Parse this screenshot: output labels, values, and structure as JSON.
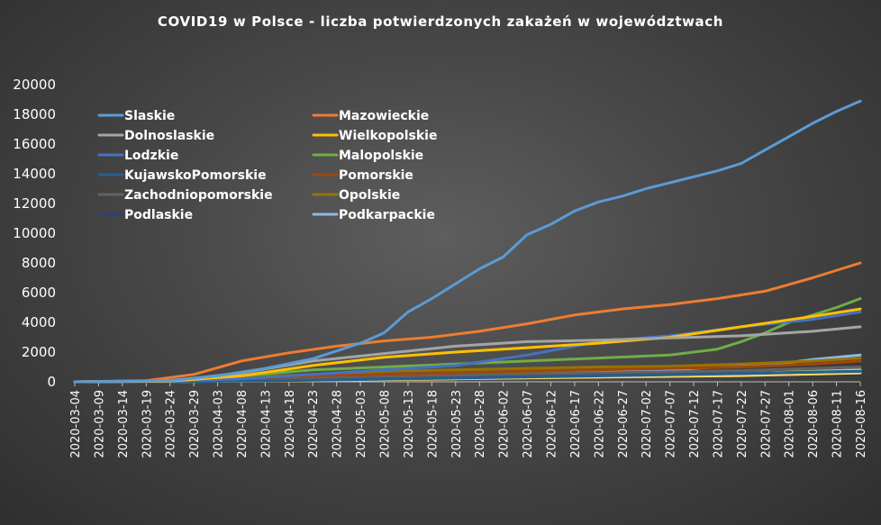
{
  "chart_data": {
    "type": "line",
    "title": "COVID19  w Polsce  - liczba  potwierdzonych  zakażeń  w  województwach",
    "xlabel": "",
    "ylabel": "",
    "ylim": [
      0,
      20000
    ],
    "yticks": [
      "0",
      "2000",
      "4000",
      "6000",
      "8000",
      "10000",
      "12000",
      "14000",
      "16000",
      "18000",
      "20000"
    ],
    "x_start": "2020-03-04",
    "x_end": "2020-08-16",
    "xticks": [
      "2020-03-04",
      "2020-03-09",
      "2020-03-14",
      "2020-03-19",
      "2020-03-24",
      "2020-03-29",
      "2020-04-03",
      "2020-04-08",
      "2020-04-13",
      "2020-04-18",
      "2020-04-23",
      "2020-04-28",
      "2020-05-03",
      "2020-05-08",
      "2020-05-13",
      "2020-05-18",
      "2020-05-23",
      "2020-05-28",
      "2020-06-02",
      "2020-06-07",
      "2020-06-12",
      "2020-06-17",
      "2020-06-22",
      "2020-06-27",
      "2020-07-02",
      "2020-07-07",
      "2020-07-12",
      "2020-07-17",
      "2020-07-22",
      "2020-07-27",
      "2020-08-01",
      "2020-08-06",
      "2020-08-11",
      "2020-08-16"
    ],
    "grid": false,
    "legend_placement": "top-left",
    "series": [
      {
        "name": "Slaskie",
        "color": "#5b9bd5",
        "x": [
          "2020-03-04",
          "2020-03-24",
          "2020-04-03",
          "2020-04-13",
          "2020-04-23",
          "2020-05-03",
          "2020-05-08",
          "2020-05-13",
          "2020-05-18",
          "2020-05-23",
          "2020-05-28",
          "2020-06-02",
          "2020-06-07",
          "2020-06-12",
          "2020-06-17",
          "2020-06-22",
          "2020-06-27",
          "2020-07-02",
          "2020-07-07",
          "2020-07-12",
          "2020-07-17",
          "2020-07-22",
          "2020-07-27",
          "2020-08-01",
          "2020-08-06",
          "2020-08-11",
          "2020-08-16"
        ],
        "y": [
          0,
          100,
          400,
          900,
          1550,
          2600,
          3300,
          4700,
          5600,
          6600,
          7600,
          8400,
          9900,
          10600,
          11500,
          12100,
          12500,
          13000,
          13400,
          13800,
          14200,
          14700,
          15600,
          16500,
          17400,
          18200,
          18900
        ]
      },
      {
        "name": "Mazowieckie",
        "color": "#ed7d31",
        "x": [
          "2020-03-04",
          "2020-03-19",
          "2020-03-29",
          "2020-04-08",
          "2020-04-18",
          "2020-04-28",
          "2020-05-08",
          "2020-05-18",
          "2020-05-28",
          "2020-06-07",
          "2020-06-17",
          "2020-06-27",
          "2020-07-07",
          "2020-07-17",
          "2020-07-27",
          "2020-08-06",
          "2020-08-16"
        ],
        "y": [
          0,
          80,
          500,
          1400,
          1950,
          2400,
          2750,
          3000,
          3400,
          3900,
          4500,
          4900,
          5200,
          5600,
          6100,
          7000,
          8000
        ]
      },
      {
        "name": "Dolnoslaskie",
        "color": "#a5a5a5",
        "x": [
          "2020-03-04",
          "2020-03-24",
          "2020-04-08",
          "2020-04-23",
          "2020-05-08",
          "2020-05-23",
          "2020-06-07",
          "2020-06-22",
          "2020-07-07",
          "2020-07-22",
          "2020-08-06",
          "2020-08-16"
        ],
        "y": [
          0,
          60,
          600,
          1400,
          1900,
          2400,
          2700,
          2800,
          2950,
          3100,
          3400,
          3700
        ]
      },
      {
        "name": "Wielkopolskie",
        "color": "#ffc000",
        "x": [
          "2020-03-04",
          "2020-03-24",
          "2020-04-08",
          "2020-04-23",
          "2020-05-08",
          "2020-05-23",
          "2020-06-07",
          "2020-06-22",
          "2020-07-07",
          "2020-07-22",
          "2020-08-06",
          "2020-08-16"
        ],
        "y": [
          0,
          40,
          400,
          1100,
          1650,
          2000,
          2300,
          2600,
          3000,
          3700,
          4400,
          4900
        ]
      },
      {
        "name": "Lodzkie",
        "color": "#4472c4",
        "x": [
          "2020-03-04",
          "2020-03-24",
          "2020-04-08",
          "2020-04-23",
          "2020-05-08",
          "2020-05-23",
          "2020-06-07",
          "2020-06-22",
          "2020-07-07",
          "2020-07-22",
          "2020-08-06",
          "2020-08-16"
        ],
        "y": [
          0,
          30,
          200,
          500,
          800,
          1100,
          1800,
          2700,
          3100,
          3700,
          4200,
          4700
        ]
      },
      {
        "name": "Malopolskie",
        "color": "#70ad47",
        "x": [
          "2020-03-04",
          "2020-03-24",
          "2020-04-08",
          "2020-04-23",
          "2020-05-08",
          "2020-05-23",
          "2020-06-07",
          "2020-06-22",
          "2020-07-07",
          "2020-07-17",
          "2020-07-22",
          "2020-07-27",
          "2020-08-01",
          "2020-08-06",
          "2020-08-11",
          "2020-08-16"
        ],
        "y": [
          0,
          50,
          400,
          800,
          1000,
          1200,
          1400,
          1600,
          1800,
          2200,
          2700,
          3300,
          4000,
          4500,
          5000,
          5600
        ]
      },
      {
        "name": "KujawskoPomorskie",
        "color": "#255e91",
        "x": [
          "2020-03-04",
          "2020-03-24",
          "2020-04-13",
          "2020-05-03",
          "2020-05-23",
          "2020-06-12",
          "2020-07-02",
          "2020-07-22",
          "2020-08-06",
          "2020-08-16"
        ],
        "y": [
          0,
          10,
          60,
          150,
          250,
          350,
          450,
          550,
          650,
          700
        ]
      },
      {
        "name": "Pomorskie",
        "color": "#9e480e",
        "x": [
          "2020-03-04",
          "2020-03-24",
          "2020-04-08",
          "2020-04-23",
          "2020-05-08",
          "2020-05-23",
          "2020-06-07",
          "2020-06-22",
          "2020-07-07",
          "2020-07-22",
          "2020-08-06",
          "2020-08-16"
        ],
        "y": [
          0,
          30,
          200,
          400,
          500,
          600,
          700,
          800,
          900,
          1000,
          1200,
          1400
        ]
      },
      {
        "name": "Zachodniopomorskie",
        "color": "#636363",
        "x": [
          "2020-03-04",
          "2020-03-24",
          "2020-04-13",
          "2020-05-03",
          "2020-05-23",
          "2020-06-12",
          "2020-07-02",
          "2020-07-22",
          "2020-08-06",
          "2020-08-16"
        ],
        "y": [
          0,
          20,
          200,
          350,
          450,
          550,
          650,
          750,
          900,
          1000
        ]
      },
      {
        "name": "Opolskie",
        "color": "#997300",
        "x": [
          "2020-03-04",
          "2020-03-24",
          "2020-04-08",
          "2020-04-23",
          "2020-05-08",
          "2020-05-23",
          "2020-06-07",
          "2020-06-22",
          "2020-07-07",
          "2020-07-22",
          "2020-08-06",
          "2020-08-16"
        ],
        "y": [
          0,
          20,
          300,
          500,
          700,
          800,
          900,
          1000,
          1050,
          1200,
          1400,
          1600
        ]
      },
      {
        "name": "Podlaskie",
        "color": "#264478",
        "x": [
          "2020-03-04",
          "2020-03-24",
          "2020-04-13",
          "2020-05-03",
          "2020-05-23",
          "2020-06-12",
          "2020-07-02",
          "2020-07-22",
          "2020-08-06",
          "2020-08-16"
        ],
        "y": [
          0,
          10,
          100,
          200,
          300,
          400,
          480,
          560,
          650,
          700
        ]
      },
      {
        "name": "Podkarpackie",
        "color": "#8fb8e8",
        "x": [
          "2020-03-04",
          "2020-03-24",
          "2020-04-08",
          "2020-04-23",
          "2020-05-08",
          "2020-05-23",
          "2020-06-07",
          "2020-06-22",
          "2020-07-07",
          "2020-07-22",
          "2020-08-01",
          "2020-08-06",
          "2020-08-16"
        ],
        "y": [
          0,
          20,
          150,
          300,
          400,
          500,
          600,
          700,
          800,
          1100,
          1300,
          1500,
          1800
        ]
      },
      {
        "name": "",
        "color": "#ffd966",
        "x": [
          "2020-03-04",
          "2020-03-24",
          "2020-04-13",
          "2020-05-03",
          "2020-05-23",
          "2020-06-12",
          "2020-07-02",
          "2020-07-22",
          "2020-08-06",
          "2020-08-16"
        ],
        "y": [
          0,
          10,
          50,
          120,
          200,
          280,
          350,
          420,
          520,
          600
        ]
      },
      {
        "name": "",
        "color": "#a9d18e",
        "x": [
          "2020-03-04",
          "2020-03-24",
          "2020-04-13",
          "2020-05-03",
          "2020-05-23",
          "2020-06-12",
          "2020-07-02",
          "2020-07-22",
          "2020-08-06",
          "2020-08-16"
        ],
        "y": [
          0,
          10,
          60,
          150,
          250,
          350,
          450,
          550,
          700,
          800
        ]
      }
    ]
  }
}
